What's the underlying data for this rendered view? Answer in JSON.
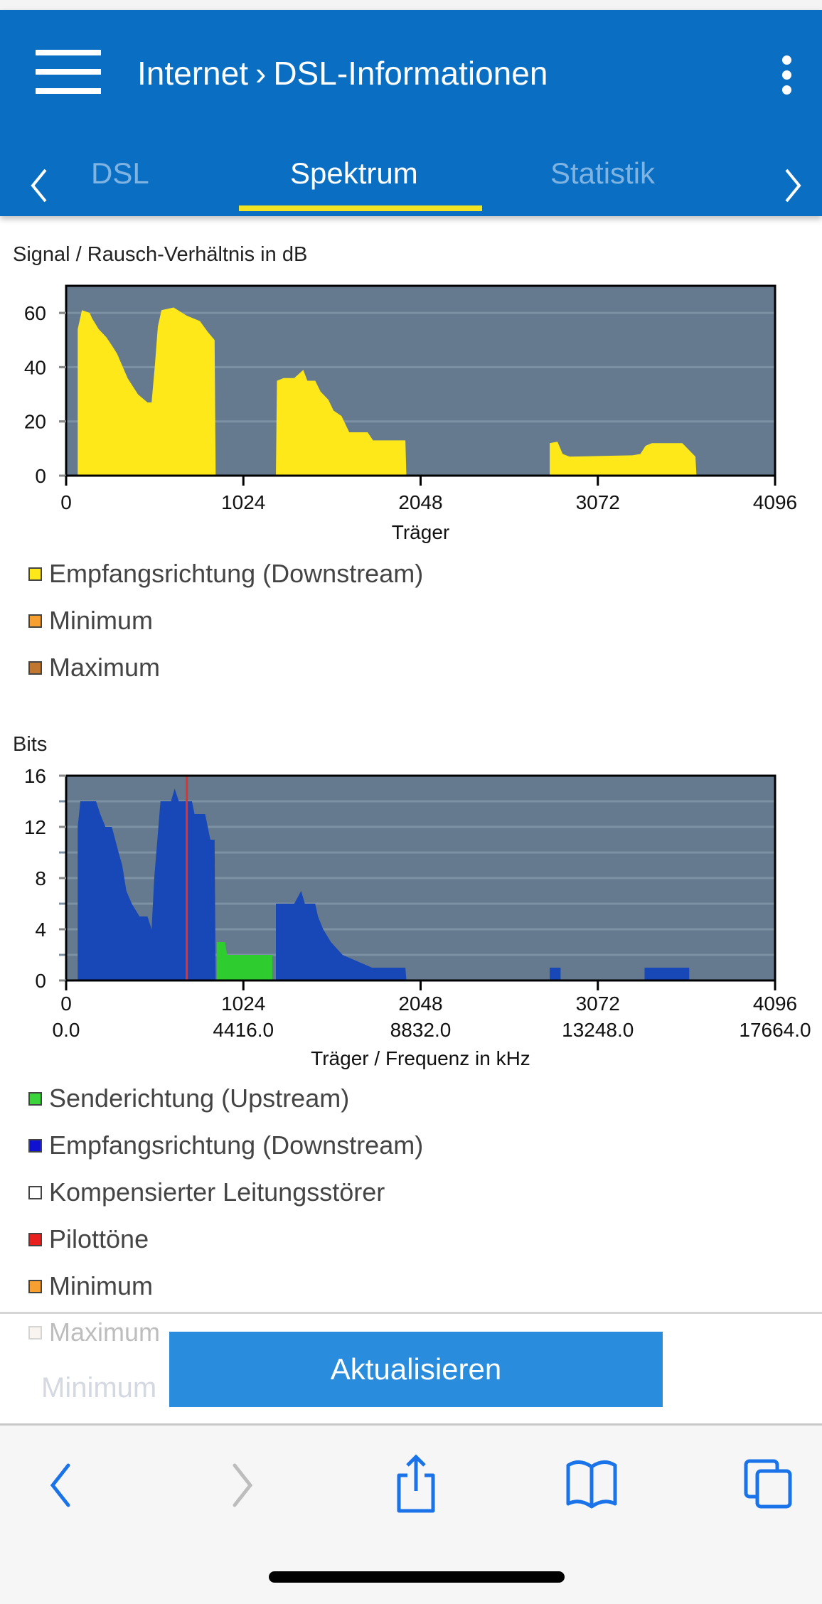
{
  "header": {
    "breadcrumb_parent": "Internet",
    "breadcrumb_separator": "›",
    "breadcrumb_current": "DSL-Informationen",
    "tabs": [
      {
        "label": "DSL",
        "active": false
      },
      {
        "label": "Spektrum",
        "active": true
      },
      {
        "label": "Statistik",
        "active": false
      }
    ]
  },
  "colors": {
    "header": "#0a6fc2",
    "tab_indicator": "#f2e422",
    "plot_bg": "#657a8e",
    "snr_fill": "#ffe81a",
    "downstream_fill": "#1848b8",
    "upstream_fill": "#2ecc2e",
    "pilot": "#e8302a",
    "button": "#2a8cdc"
  },
  "chart_data": [
    {
      "type": "area",
      "title": "Signal / Rausch-Verhältnis in dB",
      "xlabel": "Träger",
      "ylabel": "",
      "xlim": [
        0,
        4096
      ],
      "ylim": [
        0,
        70
      ],
      "xticks": [
        "0",
        "1024",
        "2048",
        "3072",
        "4096"
      ],
      "xtick_values": [
        0,
        1024,
        2048,
        3072,
        4096
      ],
      "yticks": [
        "0",
        "20",
        "40",
        "60"
      ],
      "ytick_values": [
        0,
        20,
        40,
        60
      ],
      "grid": true,
      "series": [
        {
          "name": "Empfangsrichtung (Downstream)",
          "color": "#ffe81a",
          "segments": [
            [
              [
                67,
                0
              ],
              [
                67,
                54
              ],
              [
                91,
                61
              ],
              [
                136,
                60
              ],
              [
                150,
                58
              ],
              [
                188,
                54
              ],
              [
                233,
                51
              ],
              [
                264,
                48
              ],
              [
                294,
                45
              ],
              [
                355,
                36
              ],
              [
                415,
                30
              ],
              [
                470,
                27
              ],
              [
                494,
                27
              ],
              [
                512,
                40
              ],
              [
                530,
                55
              ],
              [
                551,
                61
              ],
              [
                621,
                62
              ],
              [
                697,
                59
              ],
              [
                773,
                57
              ],
              [
                818,
                53
              ],
              [
                858,
                50
              ],
              [
                864,
                0
              ]
            ],
            [
              [
                1212,
                0
              ],
              [
                1218,
                35
              ],
              [
                1257,
                36
              ],
              [
                1318,
                36
              ],
              [
                1370,
                39
              ],
              [
                1394,
                35
              ],
              [
                1439,
                35
              ],
              [
                1470,
                31
              ],
              [
                1515,
                28
              ],
              [
                1545,
                24
              ],
              [
                1591,
                22
              ],
              [
                1636,
                16
              ],
              [
                1742,
                16
              ],
              [
                1773,
                13
              ],
              [
                1960,
                13
              ],
              [
                1966,
                0
              ]
            ],
            [
              [
                2794,
                0
              ],
              [
                2794,
                12
              ],
              [
                2839,
                12.5
              ],
              [
                2869,
                8
              ],
              [
                2909,
                7
              ],
              [
                3272,
                7.5
              ],
              [
                3318,
                8
              ],
              [
                3348,
                11
              ],
              [
                3385,
                12
              ],
              [
                3560,
                12
              ],
              [
                3606,
                9
              ],
              [
                3636,
                7
              ],
              [
                3642,
                0
              ]
            ]
          ]
        }
      ],
      "legend": [
        {
          "label": "Empfangsrichtung (Downstream)",
          "color": "#ffe81a"
        },
        {
          "label": "Minimum",
          "color": "#f5a030"
        },
        {
          "label": "Maximum",
          "color": "#c07830"
        }
      ]
    },
    {
      "type": "area",
      "title": "Bits",
      "xlabel": "Träger / Frequenz in kHz",
      "ylabel": "",
      "xlim": [
        0,
        4096
      ],
      "ylim": [
        0,
        16
      ],
      "xticks": [
        "0",
        "1024",
        "2048",
        "3072",
        "4096"
      ],
      "xticks_secondary": [
        "0.0",
        "4416.0",
        "8832.0",
        "13248.0",
        "17664.0"
      ],
      "xtick_values": [
        0,
        1024,
        2048,
        3072,
        4096
      ],
      "yticks": [
        "0",
        "4",
        "8",
        "12",
        "16"
      ],
      "ytick_values": [
        0,
        4,
        8,
        12,
        16
      ],
      "grid": true,
      "series": [
        {
          "name": "Empfangsrichtung (Downstream)",
          "color": "#1848b8",
          "segments": [
            [
              [
                67,
                0
              ],
              [
                67,
                12
              ],
              [
                82,
                14
              ],
              [
                173,
                14
              ],
              [
                197,
                13
              ],
              [
                227,
                12
              ],
              [
                264,
                12
              ],
              [
                303,
                10
              ],
              [
                324,
                9
              ],
              [
                348,
                7
              ],
              [
                379,
                6
              ],
              [
                424,
                5
              ],
              [
                470,
                5
              ],
              [
                494,
                4
              ],
              [
                509,
                8
              ],
              [
                545,
                14
              ],
              [
                606,
                14
              ],
              [
                627,
                15
              ],
              [
                651,
                14
              ],
              [
                727,
                14
              ],
              [
                742,
                13
              ],
              [
                803,
                13
              ],
              [
                833,
                11
              ],
              [
                858,
                11
              ],
              [
                864,
                0
              ]
            ],
            [
              [
                1212,
                0
              ],
              [
                1212,
                6
              ],
              [
                1318,
                6
              ],
              [
                1358,
                7
              ],
              [
                1379,
                6
              ],
              [
                1439,
                6
              ],
              [
                1455,
                5
              ],
              [
                1485,
                4
              ],
              [
                1530,
                3
              ],
              [
                1597,
                2
              ],
              [
                1767,
                1
              ],
              [
                1960,
                1
              ],
              [
                1966,
                0
              ]
            ],
            [
              [
                2794,
                0
              ],
              [
                2794,
                1
              ],
              [
                2857,
                1
              ],
              [
                2857,
                0
              ]
            ],
            [
              [
                3342,
                0
              ],
              [
                3342,
                1
              ],
              [
                3600,
                1
              ],
              [
                3600,
                0
              ]
            ]
          ]
        },
        {
          "name": "Senderichtung (Upstream)",
          "color": "#2ecc2e",
          "segments": [
            [
              [
                870,
                0
              ],
              [
                870,
                3
              ],
              [
                918,
                3
              ],
              [
                930,
                2
              ],
              [
                1191,
                2
              ],
              [
                1191,
                0
              ]
            ]
          ]
        }
      ],
      "pilot_tones": [
        697
      ],
      "legend": [
        {
          "label": "Senderichtung (Upstream)",
          "color": "#3bd43b"
        },
        {
          "label": "Empfangsrichtung (Downstream)",
          "color": "#1010d0"
        },
        {
          "label": "Kompensierter Leitungsstörer",
          "color": "#ffffff"
        },
        {
          "label": "Pilottöne",
          "color": "#e82020"
        },
        {
          "label": "Minimum",
          "color": "#f5a030"
        },
        {
          "label": "Maximum",
          "color": "#f0e2d2"
        }
      ]
    }
  ],
  "faded_text": "Minimum",
  "refresh_button": "Aktualisieren",
  "toolbar": {
    "icons": [
      "back-icon",
      "forward-icon",
      "share-icon",
      "bookmarks-icon",
      "tabs-icon"
    ]
  }
}
